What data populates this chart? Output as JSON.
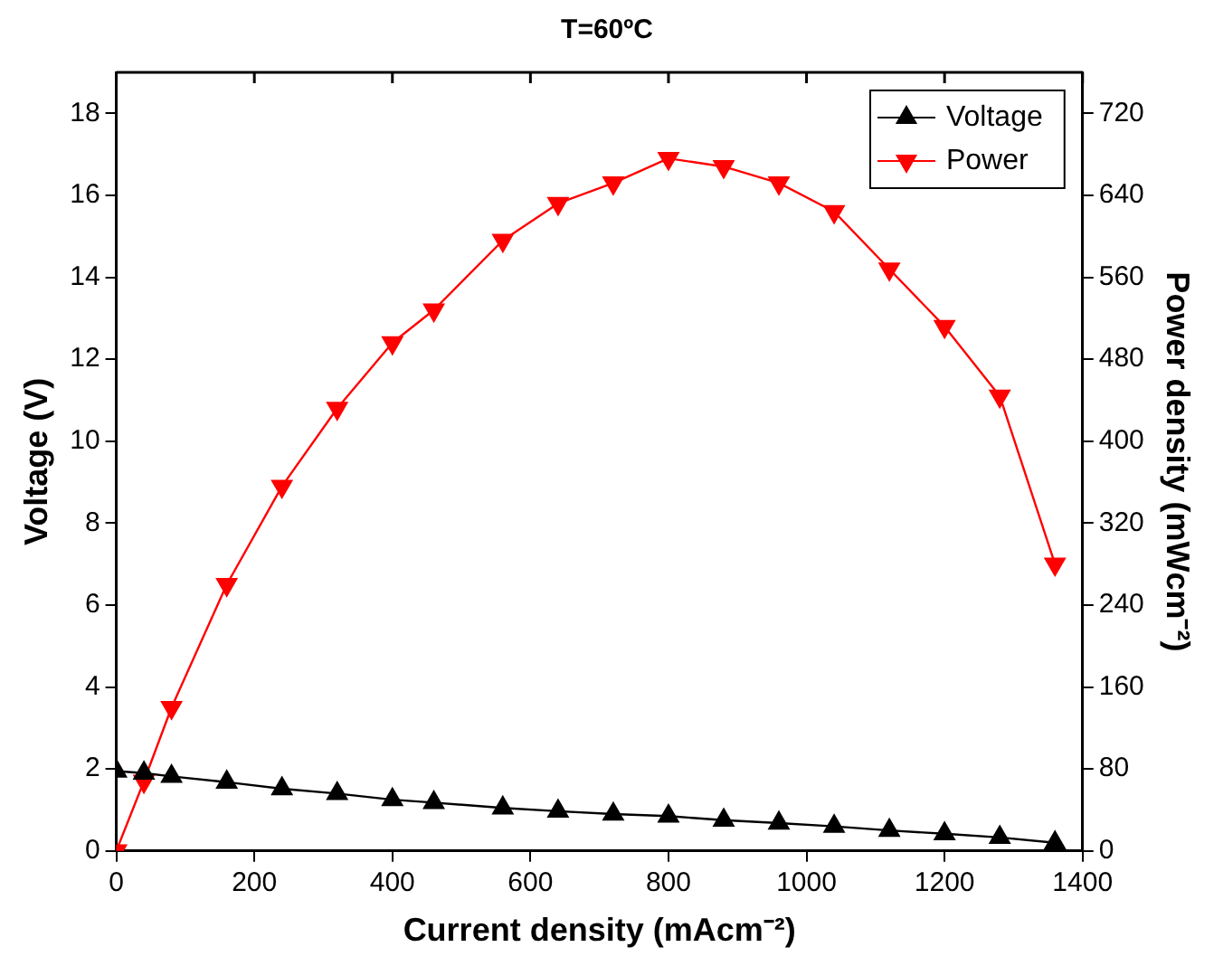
{
  "chart_data": {
    "type": "line",
    "title": "T=60ºC",
    "xlabel": "Current density (mAcm⁻²)",
    "ylabel": "Voltage (V)",
    "y2label": "Power density (mWcm⁻²)",
    "x": [
      0,
      40,
      80,
      160,
      240,
      320,
      400,
      460,
      560,
      640,
      720,
      800,
      880,
      960,
      1040,
      1120,
      1200,
      1280,
      1360
    ],
    "series": [
      {
        "name": "Voltage",
        "color": "#000000",
        "marker": "triangle",
        "values": [
          1.95,
          1.9,
          1.82,
          1.68,
          1.52,
          1.4,
          1.25,
          1.18,
          1.05,
          0.97,
          0.9,
          0.85,
          0.75,
          0.68,
          0.6,
          0.5,
          0.42,
          0.33,
          0.2
        ]
      },
      {
        "name": "Power",
        "color": "#ff0000",
        "marker": "triangle-down",
        "axis": "y2",
        "values": [
          0,
          68,
          140,
          260,
          356,
          432,
          496,
          528,
          596,
          632,
          652,
          676,
          668,
          652,
          624,
          568,
          512,
          444,
          280
        ]
      }
    ],
    "xlim": [
      0,
      1400
    ],
    "xticks": [
      0,
      200,
      400,
      600,
      800,
      1000,
      1200,
      1400
    ],
    "ylim": [
      0,
      19
    ],
    "yticks": [
      0,
      2,
      4,
      6,
      8,
      10,
      12,
      14,
      16,
      18
    ],
    "y2lim": [
      0,
      760
    ],
    "y2ticks": [
      0,
      80,
      160,
      240,
      320,
      400,
      480,
      560,
      640,
      720
    ],
    "legend": "top right",
    "grid": false,
    "line_style": "solid"
  }
}
